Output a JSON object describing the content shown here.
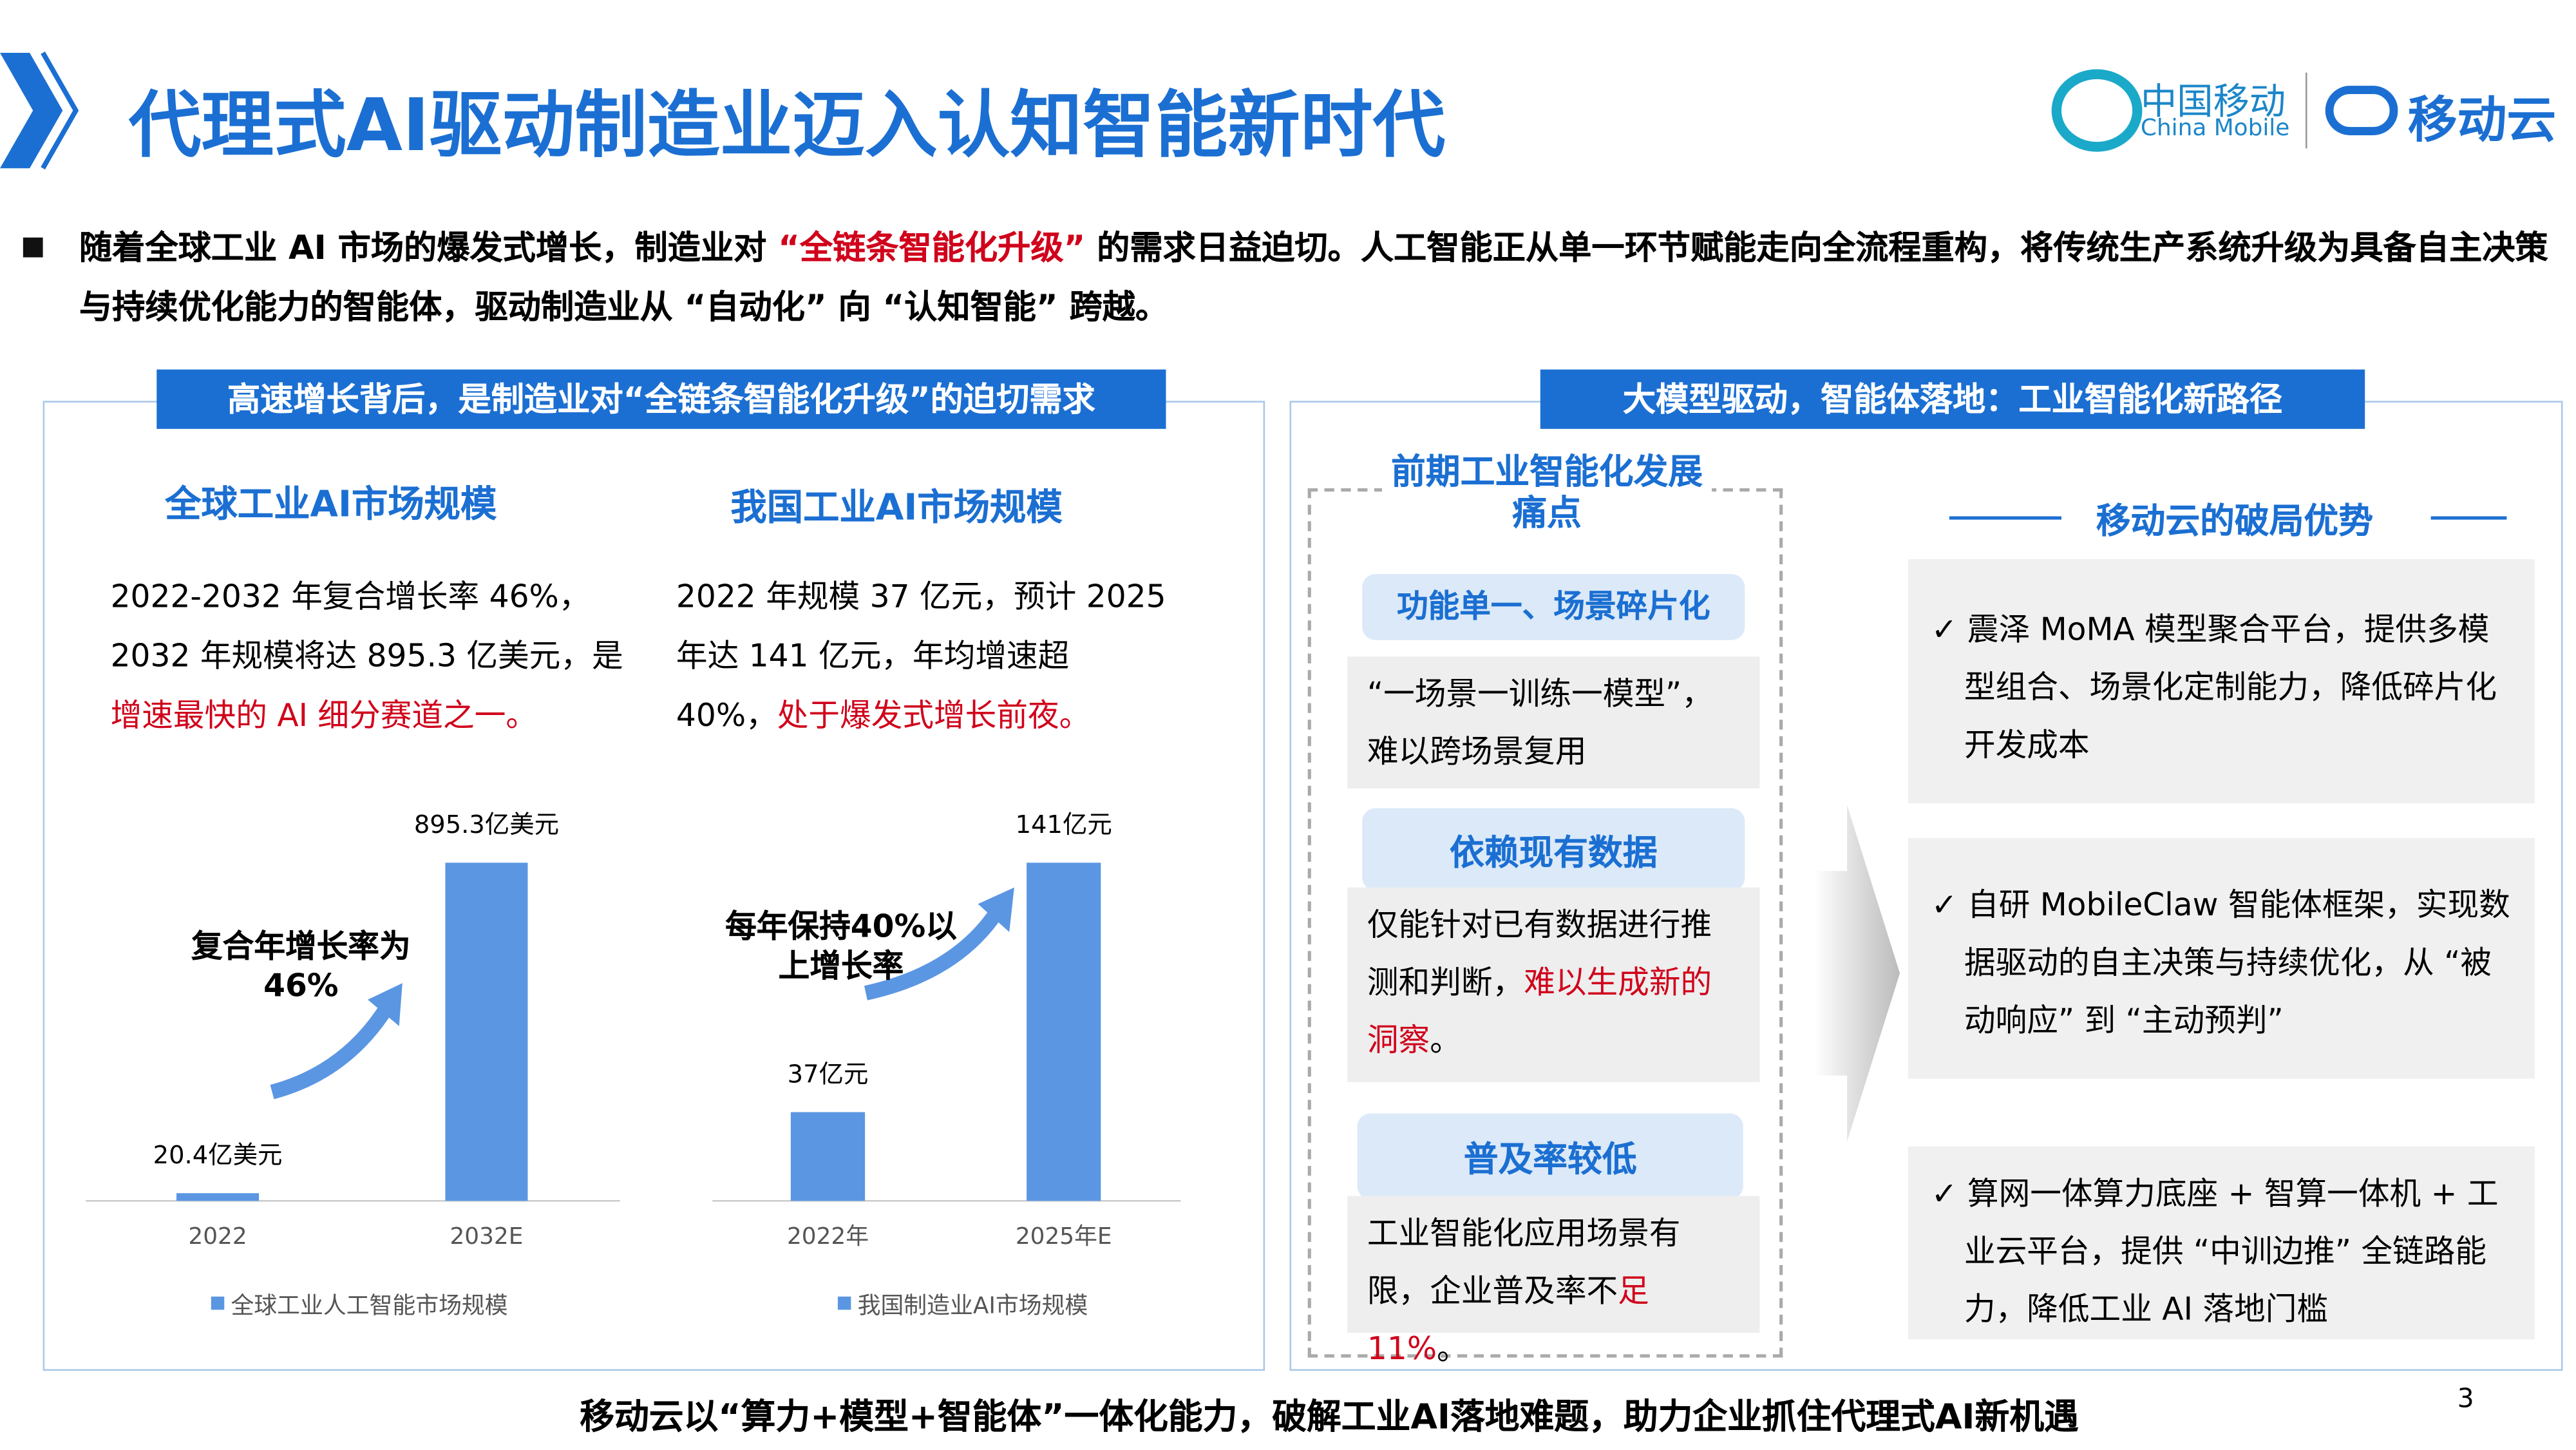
{
  "header": {
    "title": "代理式AI驱动制造业迈入认知智能新时代",
    "logo_cn": "中国移动",
    "logo_en": "China Mobile",
    "logo_cloud": "移动云"
  },
  "intro": {
    "parts": [
      {
        "text": "随着全球工业 AI 市场的爆发式增长，制造业对 "
      },
      {
        "text": "“全链条智能化升级”",
        "red": true
      },
      {
        "text": " 的需求日益迫切。人工智能正从单一环节赋能走向全流程重构，将传统生产系统升级为具备自主决策与持续优化能力的智能体，驱动制造业从 “自动化” 向 “认知智能” 跨越。"
      }
    ]
  },
  "left_panel": {
    "title": "高速增长背后，是制造业对“全链条智能化升级”的迫切需求"
  },
  "chart_data": [
    {
      "type": "bar",
      "title": "全球工业AI市场规模",
      "description": {
        "parts": [
          {
            "text": "2022-2032 年复合增长率 46%，2032 年规模将达 895.3 亿美元，是"
          },
          {
            "text": "增速最快的 AI 细分赛道之一。",
            "red": true
          }
        ]
      },
      "categories": [
        "2022",
        "2032E"
      ],
      "values": [
        20.4,
        895.3
      ],
      "value_labels": [
        "20.4亿美元",
        "895.3亿美元"
      ],
      "color": "#5b96e3",
      "legend": "全球工业人工智能市场规模",
      "annotation": "复合年增长率为46%"
    },
    {
      "type": "bar",
      "title": "我国工业AI市场规模",
      "description": {
        "parts": [
          {
            "text": "2022 年规模 37 亿元，预计 2025 年达 141 亿元，年均增速超 40%，"
          },
          {
            "text": "处于爆发式增长前夜。",
            "red": true
          }
        ]
      },
      "categories": [
        "2022年",
        "2025年E"
      ],
      "values": [
        37,
        141
      ],
      "value_labels": [
        "37亿元",
        "141亿元"
      ],
      "color": "#5b96e3",
      "legend": "我国制造业AI市场规模",
      "annotation": "每年保持40%以上增长率"
    }
  ],
  "right_panel": {
    "title": "大模型驱动，智能体落地：工业智能化新路径",
    "pain_title": "前期工业智能化发展痛点",
    "pain_points": [
      {
        "title": "功能单一、场景碎片化",
        "parts": [
          {
            "text": "“一场景一训练一模型”，难以跨场景复用"
          }
        ]
      },
      {
        "title": "依赖现有数据",
        "parts": [
          {
            "text": "仅能针对已有数据进行推测和判断，"
          },
          {
            "text": "难以生成新的洞察",
            "red": true
          },
          {
            "text": "。"
          }
        ]
      },
      {
        "title": "普及率较低",
        "parts": [
          {
            "text": "工业智能化应用场景有限，企业普及率不"
          },
          {
            "text": "足11%",
            "red": true
          },
          {
            "text": "。"
          }
        ]
      }
    ],
    "advantages_title": "移动云的破局优势",
    "advantages": [
      "✓ 震泽 MoMA 模型聚合平台，提供多模型组合、场景化定制能力，降低碎片化开发成本",
      "✓ 自研 MobileClaw 智能体框架，实现数据驱动的自主决策与持续优化，从 “被动响应” 到 “主动预判”",
      "✓ 算网一体算力底座 + 智算一体机 + 工业云平台，提供 “中训边推” 全链路能力，降低工业 AI 落地门槛"
    ]
  },
  "footer": "移动云以“算力+模型+智能体”一体化能力，破解工业AI落地难题，助力企业抓住代理式AI新机遇",
  "page_number": "3"
}
